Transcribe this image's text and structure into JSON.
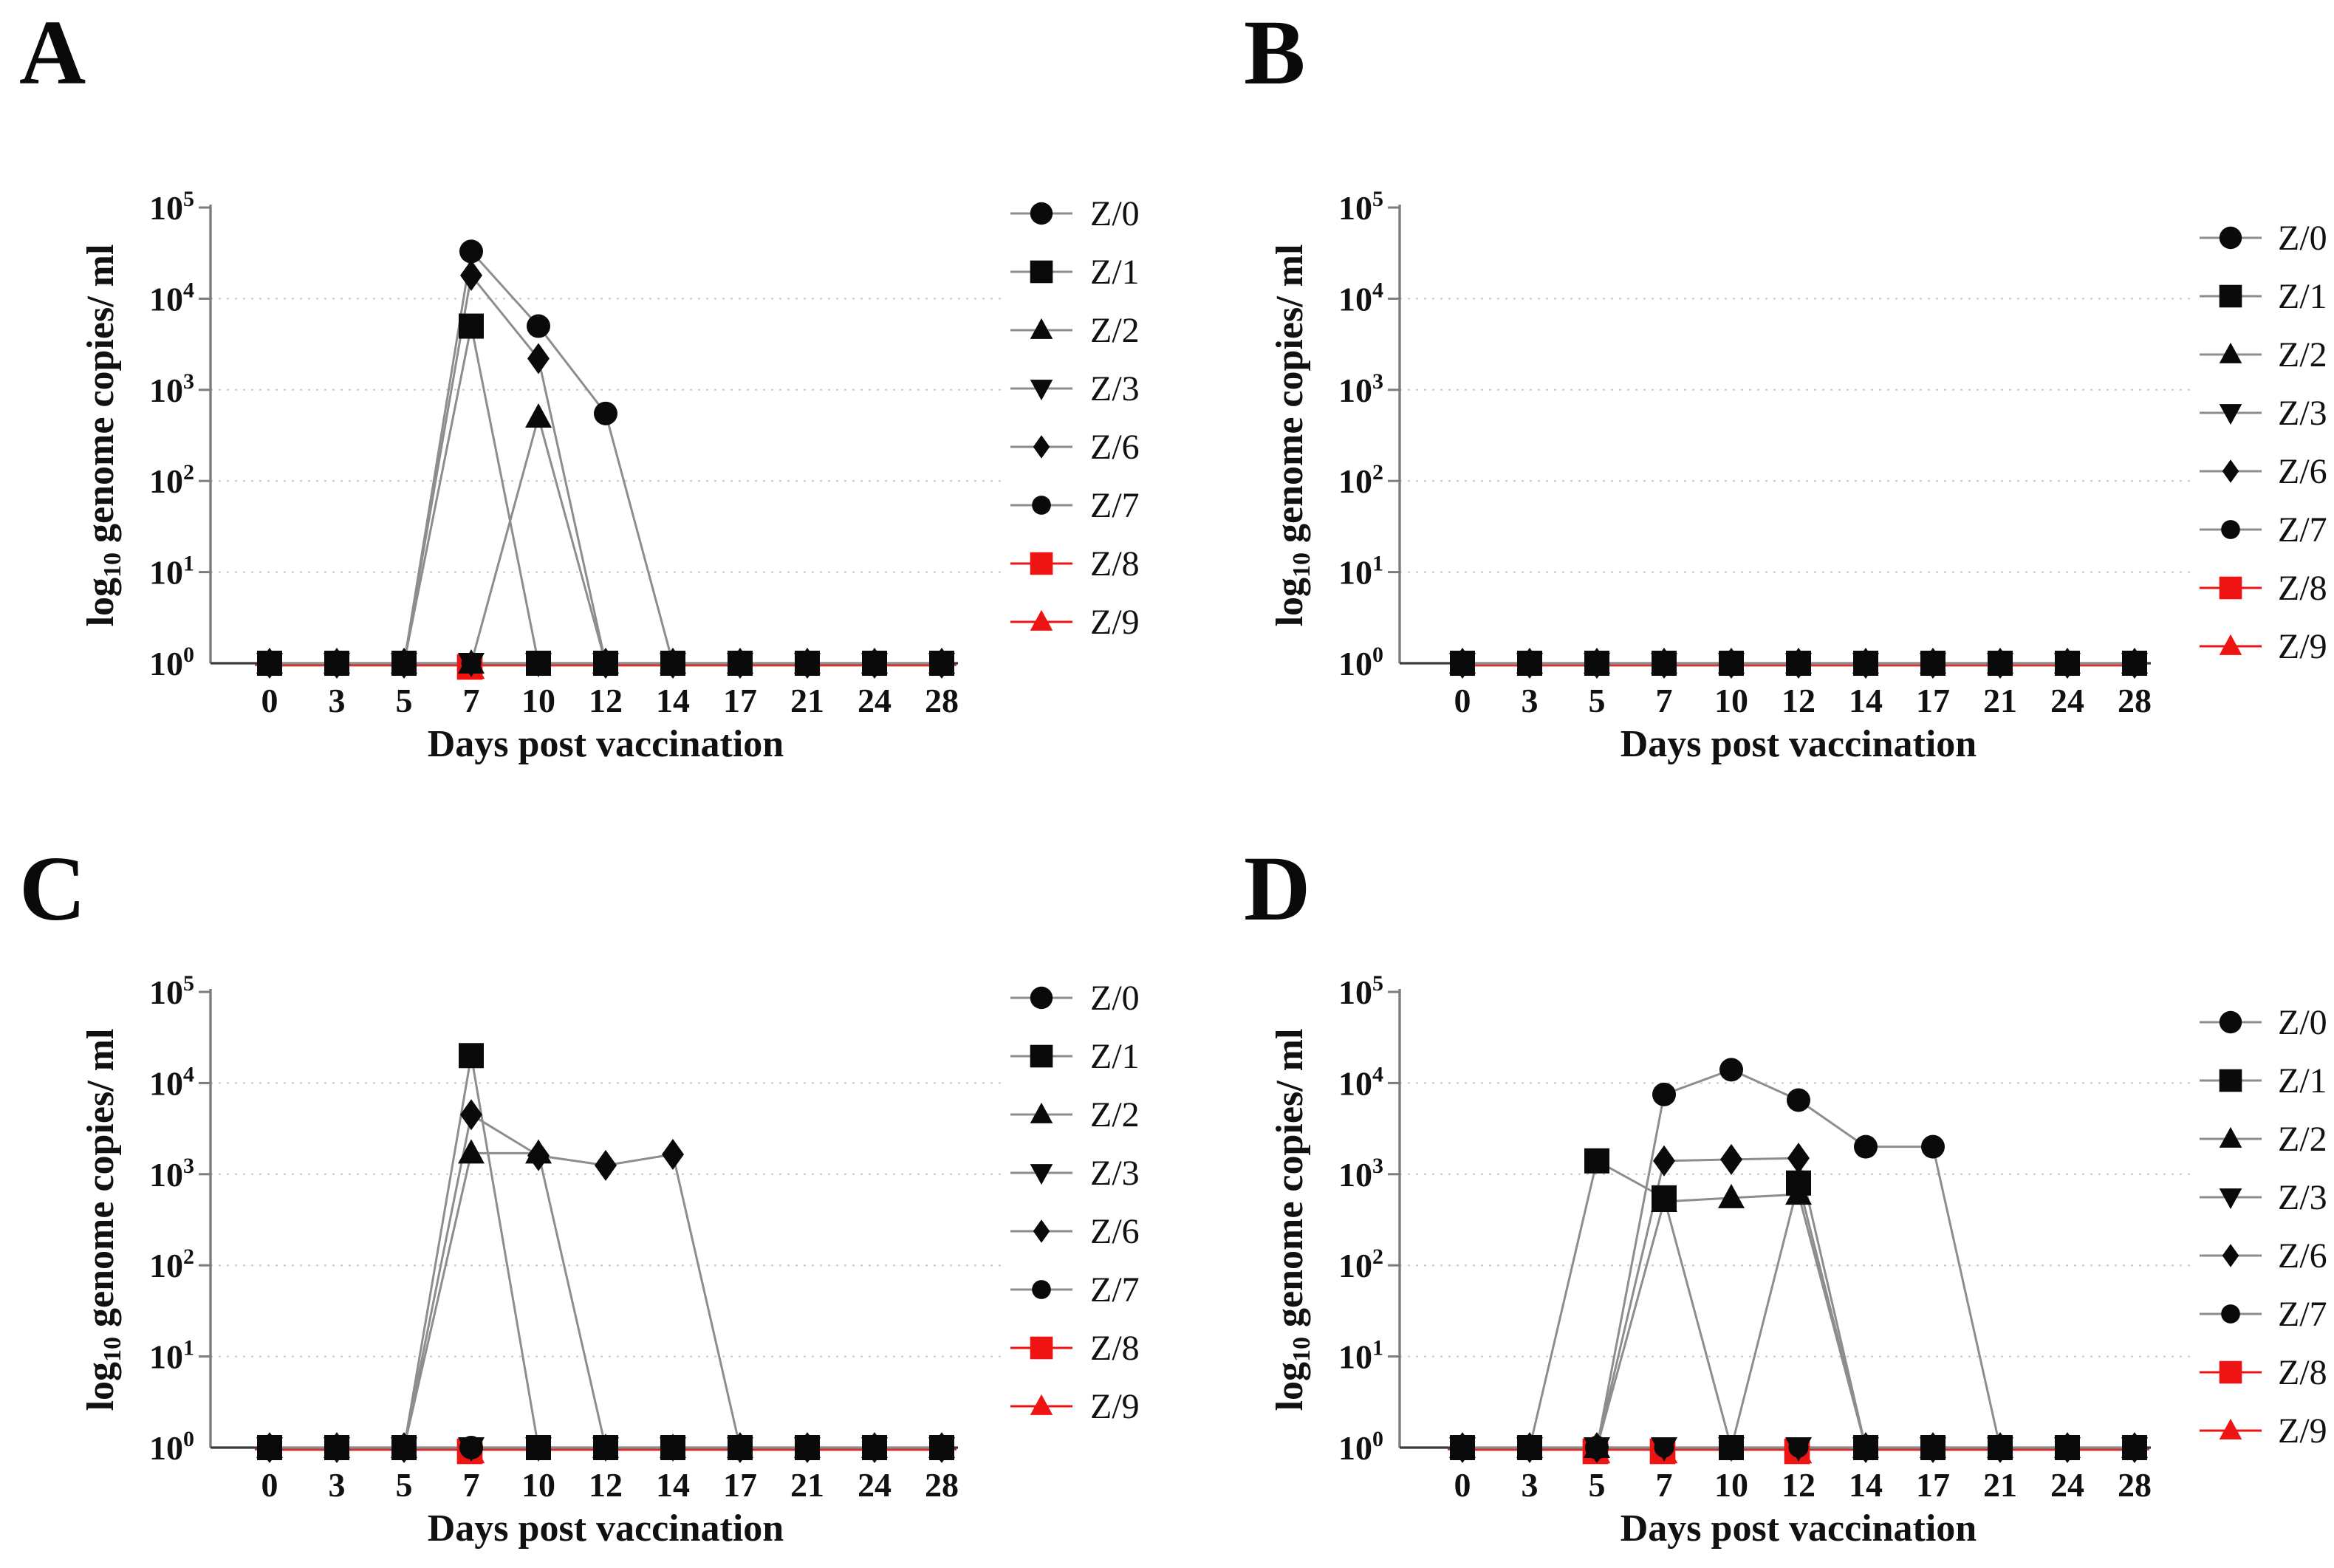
{
  "figure": {
    "panels": [
      {
        "letter": "A"
      },
      {
        "letter": "B"
      },
      {
        "letter": "C"
      },
      {
        "letter": "D"
      }
    ],
    "axis": {
      "y_label_pre": "log",
      "y_label_sub": "10",
      "y_label_post": " genome copies/ ml",
      "x_label": "Days post vaccination",
      "x_ticks": [
        "0",
        "3",
        "5",
        "7",
        "10",
        "12",
        "14",
        "17",
        "21",
        "24",
        "28"
      ],
      "y_tick_base": "10",
      "y_tick_exponents": [
        "5",
        "4",
        "3",
        "2",
        "1",
        "0"
      ],
      "y_gridline_exponents": [
        4,
        3,
        2,
        1
      ]
    },
    "legend": [
      {
        "label": "Z/0",
        "marker": "circle",
        "color": "#0a0a0a"
      },
      {
        "label": "Z/1",
        "marker": "square",
        "color": "#0a0a0a"
      },
      {
        "label": "Z/2",
        "marker": "triangle-up",
        "color": "#0a0a0a"
      },
      {
        "label": "Z/3",
        "marker": "triangle-down",
        "color": "#0a0a0a"
      },
      {
        "label": "Z/6",
        "marker": "diamond",
        "color": "#0a0a0a"
      },
      {
        "label": "Z/7",
        "marker": "circle-small",
        "color": "#0a0a0a"
      },
      {
        "label": "Z/8",
        "marker": "square",
        "color": "#ee1414"
      },
      {
        "label": "Z/9",
        "marker": "triangle-up",
        "color": "#ee1414"
      }
    ],
    "colors": {
      "marker_black": "#0a0a0a",
      "marker_red": "#ee1414",
      "series_line": "#8d8d8d",
      "red_line": "#d63030",
      "axis_gray": "#7c7c7c",
      "x_axis_dark": "#3b3b3b",
      "grid": "#c7c7c7",
      "text": "#111111"
    }
  },
  "chart_data": [
    {
      "panel": "A",
      "type": "line",
      "y_scale": "log10",
      "ylim": [
        1,
        100000
      ],
      "grid": true,
      "legend_position": "right",
      "x": [
        0,
        3,
        5,
        7,
        10,
        12,
        14,
        17,
        21,
        24,
        28
      ],
      "xlabel": "Days post vaccination",
      "ylabel": "log10 genome copies/ ml",
      "series": [
        {
          "name": "Z/0",
          "values": [
            1,
            1,
            1,
            33000,
            5000,
            550,
            1,
            1,
            1,
            1,
            1
          ]
        },
        {
          "name": "Z/1",
          "values": [
            1,
            1,
            1,
            5000,
            1,
            1,
            1,
            1,
            1,
            1,
            1
          ]
        },
        {
          "name": "Z/2",
          "values": [
            1,
            1,
            1,
            1,
            500,
            1,
            1,
            1,
            1,
            1,
            1
          ]
        },
        {
          "name": "Z/3",
          "values": [
            1,
            1,
            1,
            1,
            1,
            1,
            1,
            1,
            1,
            1,
            1
          ]
        },
        {
          "name": "Z/6",
          "values": [
            1,
            1,
            1,
            18000,
            2200,
            1,
            1,
            1,
            1,
            1,
            1
          ]
        },
        {
          "name": "Z/7",
          "values": [
            1,
            1,
            1,
            1,
            1,
            1,
            1,
            1,
            1,
            1,
            1
          ]
        },
        {
          "name": "Z/8",
          "values": [
            1,
            1,
            1,
            1,
            1,
            1,
            1,
            1,
            1,
            1,
            1
          ]
        },
        {
          "name": "Z/9",
          "values": [
            1,
            1,
            1,
            1,
            1,
            1,
            1,
            1,
            1,
            1,
            1
          ]
        }
      ],
      "red_marker_visible_days": [
        7
      ]
    },
    {
      "panel": "B",
      "type": "line",
      "y_scale": "log10",
      "ylim": [
        1,
        100000
      ],
      "grid": true,
      "legend_position": "right",
      "x": [
        0,
        3,
        5,
        7,
        10,
        12,
        14,
        17,
        21,
        24,
        28
      ],
      "xlabel": "Days post vaccination",
      "ylabel": "log10 genome copies/ ml",
      "series": [
        {
          "name": "Z/0",
          "values": [
            1,
            1,
            1,
            1,
            1,
            1,
            1,
            1,
            1,
            1,
            1
          ]
        },
        {
          "name": "Z/1",
          "values": [
            1,
            1,
            1,
            1,
            1,
            1,
            1,
            1,
            1,
            1,
            1
          ]
        },
        {
          "name": "Z/2",
          "values": [
            1,
            1,
            1,
            1,
            1,
            1,
            1,
            1,
            1,
            1,
            1
          ]
        },
        {
          "name": "Z/3",
          "values": [
            1,
            1,
            1,
            1,
            1,
            1,
            1,
            1,
            1,
            1,
            1
          ]
        },
        {
          "name": "Z/6",
          "values": [
            1,
            1,
            1,
            1,
            1,
            1,
            1,
            1,
            1,
            1,
            1
          ]
        },
        {
          "name": "Z/7",
          "values": [
            1,
            1,
            1,
            1,
            1,
            1,
            1,
            1,
            1,
            1,
            1
          ]
        },
        {
          "name": "Z/8",
          "values": [
            1,
            1,
            1,
            1,
            1,
            1,
            1,
            1,
            1,
            1,
            1
          ]
        },
        {
          "name": "Z/9",
          "values": [
            1,
            1,
            1,
            1,
            1,
            1,
            1,
            1,
            1,
            1,
            1
          ]
        }
      ],
      "red_marker_visible_days": []
    },
    {
      "panel": "C",
      "type": "line",
      "y_scale": "log10",
      "ylim": [
        1,
        100000
      ],
      "grid": true,
      "legend_position": "right",
      "x": [
        0,
        3,
        5,
        7,
        10,
        12,
        14,
        17,
        21,
        24,
        28
      ],
      "xlabel": "Days post vaccination",
      "ylabel": "log10 genome copies/ ml",
      "series": [
        {
          "name": "Z/0",
          "values": [
            1,
            1,
            1,
            1,
            1,
            1,
            1,
            1,
            1,
            1,
            1
          ]
        },
        {
          "name": "Z/1",
          "values": [
            1,
            1,
            1,
            20000,
            1,
            1,
            1,
            1,
            1,
            1,
            1
          ]
        },
        {
          "name": "Z/2",
          "values": [
            1,
            1,
            1,
            1700,
            1700,
            1,
            1,
            1,
            1,
            1,
            1
          ]
        },
        {
          "name": "Z/3",
          "values": [
            1,
            1,
            1,
            1,
            1,
            1,
            1,
            1,
            1,
            1,
            1
          ]
        },
        {
          "name": "Z/6",
          "values": [
            1,
            1,
            1,
            4500,
            1600,
            1250,
            1650,
            1,
            1,
            1,
            1
          ]
        },
        {
          "name": "Z/7",
          "values": [
            1,
            1,
            1,
            1,
            1,
            1,
            1,
            1,
            1,
            1,
            1
          ]
        },
        {
          "name": "Z/8",
          "values": [
            1,
            1,
            1,
            1,
            1,
            1,
            1,
            1,
            1,
            1,
            1
          ]
        },
        {
          "name": "Z/9",
          "values": [
            1,
            1,
            1,
            1,
            1,
            1,
            1,
            1,
            1,
            1,
            1
          ]
        }
      ],
      "red_marker_visible_days": [
        7
      ]
    },
    {
      "panel": "D",
      "type": "line",
      "y_scale": "log10",
      "ylim": [
        1,
        100000
      ],
      "grid": true,
      "legend_position": "right",
      "x": [
        0,
        3,
        5,
        7,
        10,
        12,
        14,
        17,
        21,
        24,
        28
      ],
      "xlabel": "Days post vaccination",
      "ylabel": "log10 genome copies/ ml",
      "series": [
        {
          "name": "Z/0",
          "values": [
            1,
            1,
            1,
            7500,
            14000,
            6500,
            2000,
            2000,
            1,
            1,
            1
          ]
        },
        {
          "name": "Z/1",
          "values": [
            1,
            1,
            1400,
            550,
            1,
            800,
            1,
            1,
            1,
            1,
            1
          ]
        },
        {
          "name": "Z/2",
          "values": [
            1,
            1,
            1,
            500,
            550,
            600,
            1,
            1,
            1,
            1,
            1
          ]
        },
        {
          "name": "Z/3",
          "values": [
            1,
            1,
            1,
            1,
            1,
            1,
            1,
            1,
            1,
            1,
            1
          ]
        },
        {
          "name": "Z/6",
          "values": [
            1,
            1,
            1,
            1400,
            1450,
            1500,
            1,
            1,
            1,
            1,
            1
          ]
        },
        {
          "name": "Z/7",
          "values": [
            1,
            1,
            1,
            1,
            1,
            1,
            1,
            1,
            1,
            1,
            1
          ]
        },
        {
          "name": "Z/8",
          "values": [
            1,
            1,
            1,
            1,
            1,
            1,
            1,
            1,
            1,
            1,
            1
          ]
        },
        {
          "name": "Z/9",
          "values": [
            1,
            1,
            1,
            1,
            1,
            1,
            1,
            1,
            1,
            1,
            1
          ]
        }
      ],
      "red_marker_visible_days": [
        5,
        7,
        12
      ]
    }
  ]
}
